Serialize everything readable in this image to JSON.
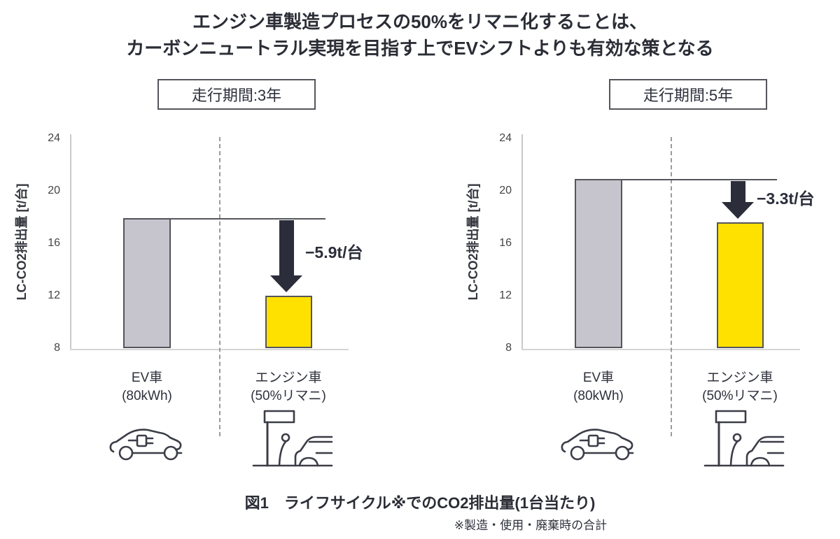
{
  "title": {
    "line1": "エンジン車製造プロセスの50%をリマニ化することは、",
    "line2": "カーボンニュートラル実現を目指す上でEVシフトよりも有効な策となる"
  },
  "caption": {
    "text": "図1　ライフサイクル※でのCO2排出量(1台当たり)",
    "footnote": "※製造・使用・廃棄時の合計"
  },
  "colors": {
    "ev_bar": "#c6c5cd",
    "engine_bar": "#ffe100",
    "bar_border": "#54555c",
    "arrow": "#2b2d3a",
    "text_dark": "#2b2d36"
  },
  "chart_data": [
    {
      "type": "bar",
      "title": "走行期間:3年",
      "ylabel": "LC-CO2排出量 [t/台]",
      "ylim": [
        8,
        24
      ],
      "yticks": [
        24,
        20,
        16,
        12,
        8
      ],
      "grid": false,
      "legend": "none",
      "categories": [
        {
          "line1": "EV車",
          "line2": "(80kWh)"
        },
        {
          "line1": "エンジン車",
          "line2": "(50%リマニ)"
        }
      ],
      "values": [
        17.9,
        12.0
      ],
      "bar_colors": [
        "#c6c5cd",
        "#ffe100"
      ],
      "annotation": "−5.9t/台"
    },
    {
      "type": "bar",
      "title": "走行期間:5年",
      "ylabel": "LC-CO2排出量 [t/台]",
      "ylim": [
        8,
        24
      ],
      "yticks": [
        24,
        20,
        16,
        12,
        8
      ],
      "grid": false,
      "legend": "none",
      "categories": [
        {
          "line1": "EV車",
          "line2": "(80kWh)"
        },
        {
          "line1": "エンジン車",
          "line2": "(50%リマニ)"
        }
      ],
      "values": [
        20.9,
        17.6
      ],
      "bar_colors": [
        "#c6c5cd",
        "#ffe100"
      ],
      "annotation": "−3.3t/台"
    }
  ],
  "icons": {
    "ev": "ev-car-icon",
    "engine": "remanufacturing-icon"
  }
}
